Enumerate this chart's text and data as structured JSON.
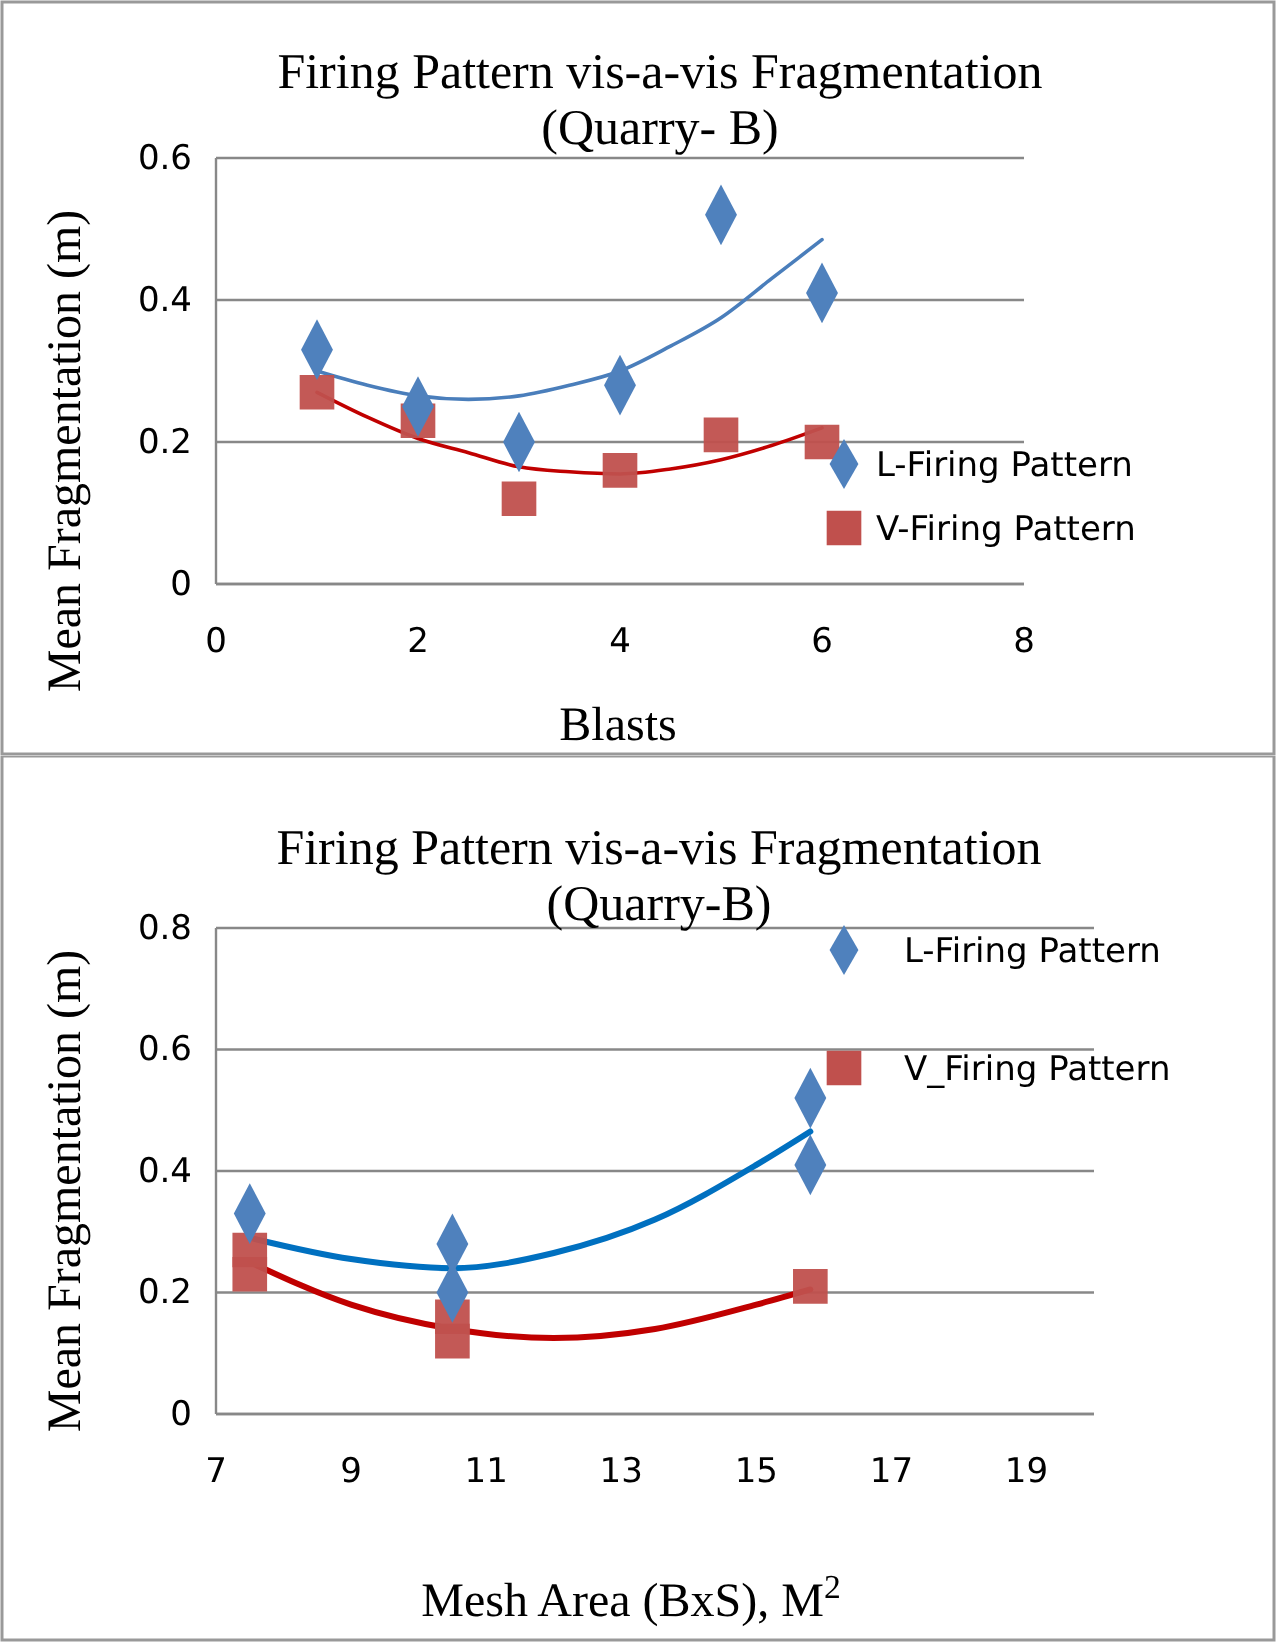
{
  "chart_data": [
    {
      "type": "scatter",
      "title": "Firing Pattern vis-a-vis Fragmentation (Quarry- B)",
      "xlabel": "Blasts",
      "ylabel": "Mean Fragmentation (m)",
      "xlim": [
        0,
        8
      ],
      "xticks": [
        0,
        2,
        4,
        6,
        8
      ],
      "ylim": [
        0,
        0.6
      ],
      "yticks": [
        0,
        0.2,
        0.4,
        0.6
      ],
      "grid": "y",
      "legend": "bottom right",
      "series": [
        {
          "name": "L-Firing Pattern",
          "color": "#4f81bd",
          "marker": "diamond",
          "x": [
            1,
            2,
            3,
            4,
            5,
            6
          ],
          "values": [
            0.33,
            0.25,
            0.2,
            0.28,
            0.52,
            0.41
          ]
        },
        {
          "name": "V-Firing Pattern",
          "color": "#c0504d",
          "marker": "square",
          "x": [
            1,
            2,
            3,
            4,
            5,
            6
          ],
          "values": [
            0.27,
            0.23,
            0.12,
            0.16,
            0.21,
            0.2
          ]
        },
        {
          "type": "line",
          "color": "#4a7ebb",
          "x": [
            1,
            1.5,
            2,
            2.5,
            3,
            3.5,
            4,
            4.5,
            5,
            5.5,
            6
          ],
          "values": [
            0.3,
            0.28,
            0.265,
            0.26,
            0.265,
            0.28,
            0.3,
            0.335,
            0.375,
            0.43,
            0.485
          ]
        },
        {
          "type": "line",
          "color": "#c00000",
          "x": [
            1,
            1.5,
            2,
            2.5,
            3,
            3.5,
            4,
            4.5,
            5,
            5.5,
            6
          ],
          "values": [
            0.27,
            0.235,
            0.205,
            0.185,
            0.165,
            0.158,
            0.155,
            0.162,
            0.175,
            0.195,
            0.22
          ]
        }
      ]
    },
    {
      "type": "scatter",
      "title": "Firing Pattern vis-a-vis Fragmentation (Quarry-B)",
      "xlabel": "Mesh Area (BxS), M$^{2}$",
      "ylabel": "Mean Fragmentation (m)",
      "xlim": [
        7,
        20
      ],
      "xticks": [
        7,
        9,
        11,
        13,
        15,
        17,
        19
      ],
      "ylim": [
        0,
        0.8
      ],
      "yticks": [
        0,
        0.2,
        0.4,
        0.6,
        0.8
      ],
      "grid": "y",
      "legend": "top right",
      "series": [
        {
          "name": "L-Firing Pattern",
          "color": "#4f81bd",
          "marker": "diamond",
          "x": [
            7.5,
            10.5,
            10.5,
            15.8,
            15.8
          ],
          "values": [
            0.33,
            0.28,
            0.2,
            0.52,
            0.41
          ]
        },
        {
          "name": "V_Firing Pattern",
          "color": "#c0504d",
          "marker": "square",
          "x": [
            7.5,
            7.5,
            10.5,
            10.5,
            15.8
          ],
          "values": [
            0.27,
            0.23,
            0.16,
            0.12,
            0.21
          ]
        },
        {
          "type": "line",
          "color": "#0070c0",
          "x": [
            7.5,
            9,
            10.5,
            12,
            13.5,
            15,
            15.8
          ],
          "values": [
            0.29,
            0.255,
            0.24,
            0.265,
            0.32,
            0.41,
            0.465
          ]
        },
        {
          "type": "line",
          "color": "#c00000",
          "x": [
            7.5,
            9,
            10.5,
            12,
            13.5,
            15,
            15.8
          ],
          "values": [
            0.25,
            0.18,
            0.14,
            0.125,
            0.14,
            0.18,
            0.205
          ]
        }
      ]
    }
  ]
}
